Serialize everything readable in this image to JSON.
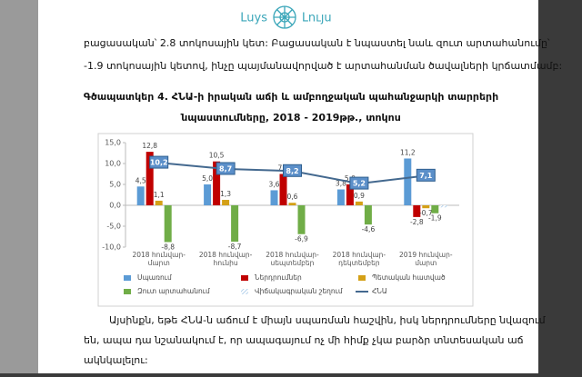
{
  "header": {
    "logo_latin": "Luys",
    "logo_armenian": "Լույս"
  },
  "paragraph_1": {
    "lines": [
      "բացասական՝ 2.8 տոկոսային կետ: Բացասական է նպաստել նաև զուտ արտահանումը՝",
      "-1.9 տոկոսային կետով, ինչը պայմանավորված է արտահանման ծավալների կրճատմամբ:"
    ]
  },
  "figure_caption": {
    "lines": [
      "Գծապատկեր 4. ՀՆԱ-ի իրական աճի և ամբողջական պահանջարկի տարրերի",
      "նպաստումները, 2018 - 2019թթ., տոկոս"
    ]
  },
  "chart_data": {
    "type": "bar",
    "categories": [
      "2018 հունվար-մարտ",
      "2018 հունվար-հունիս",
      "2018 հունվար-սեպտեմբեր",
      "2018 հունվար-դեկտեմբեր",
      "2019 հունվար-մարտ"
    ],
    "ylim": [
      -10,
      15
    ],
    "yticks": [
      {
        "value": 15,
        "label": "15,0"
      },
      {
        "value": 10,
        "label": "10,0"
      },
      {
        "value": 5,
        "label": "5,0"
      },
      {
        "value": 0,
        "label": "0,0"
      },
      {
        "value": -5,
        "label": "-5,0"
      },
      {
        "value": -10,
        "label": "-10,0"
      }
    ],
    "series": [
      {
        "name": "Սպառում",
        "color": "#5b9bd5",
        "type": "bar",
        "values": [
          4.5,
          5.0,
          3.6,
          3.8,
          11.2
        ],
        "value_labels": [
          "4,5",
          "5,0",
          "3,6",
          "3,8",
          "11,2"
        ]
      },
      {
        "name": "Ներդրումներ",
        "color": "#c00000",
        "type": "bar",
        "values": [
          12.8,
          10.5,
          7.5,
          5.0,
          -2.8
        ],
        "value_labels": [
          "12,8",
          "10,5",
          "7,5",
          "5,0",
          "-2,8"
        ]
      },
      {
        "name": "Պետական հատված",
        "color": "#d4a017",
        "type": "bar",
        "values": [
          1.1,
          1.3,
          0.6,
          0.9,
          -0.7
        ],
        "value_labels": [
          "1,1",
          "1,3",
          "0,6",
          "0,9",
          "-0,7"
        ]
      },
      {
        "name": "Զուտ արտահանում",
        "color": "#70ad47",
        "type": "bar",
        "values": [
          -8.8,
          -8.7,
          -6.9,
          -4.6,
          -1.9
        ],
        "value_labels": [
          "-8,8",
          "-8,7",
          "-6,9",
          "-4,6",
          "-1,9"
        ]
      },
      {
        "name": "Վիճակագրական շեղում",
        "color": "#9dc3e6",
        "type": "bar",
        "pattern": "hatch",
        "values": [
          null,
          null,
          null,
          null,
          -0.5
        ]
      },
      {
        "name": "ՀՆԱ",
        "color": "#44698f",
        "type": "line",
        "values": [
          10.2,
          8.7,
          8.2,
          5.2,
          7.1
        ],
        "value_labels": [
          "10,2",
          "8,7",
          "8,2",
          "5,2",
          "7,1"
        ]
      }
    ]
  },
  "paragraph_2": {
    "lines": [
      "Այսինքն, եթե ՀՆԱ-ն աճում է միայն սպառման հաշվին, իսկ ներդրումները նվազում",
      "են, ապա դա նշանակում է, որ ապագայում ոչ մի հիմք չկա բարձր տնտեսական աճ",
      "ակնկալելու:"
    ]
  }
}
